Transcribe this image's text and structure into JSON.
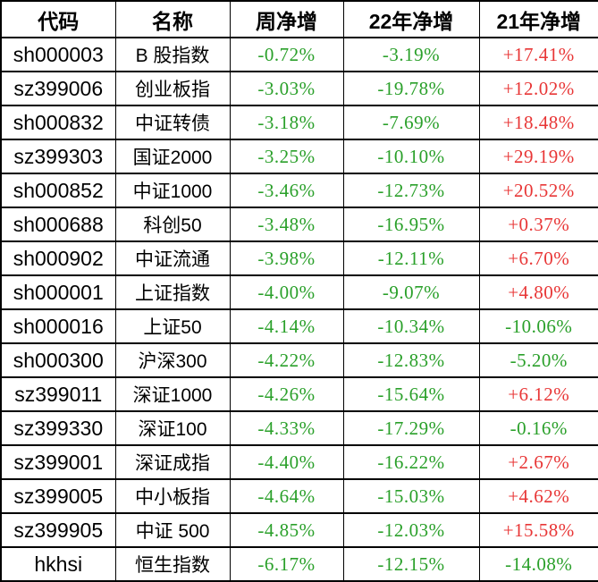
{
  "colors": {
    "negative_green": "#2aa02a",
    "positive_red": "#e83636",
    "grid_black": "#000000",
    "background": "#ffffff"
  },
  "chart_data": {
    "type": "table",
    "title": "",
    "columns": [
      "代码",
      "名称",
      "周净增",
      "22年净增",
      "21年净增"
    ],
    "rows": [
      {
        "code": "sh000003",
        "name": "B 股指数",
        "week": "-0.72%",
        "y2022": "-3.19%",
        "y2021": "+17.41%"
      },
      {
        "code": "sz399006",
        "name": "创业板指",
        "week": "-3.03%",
        "y2022": "-19.78%",
        "y2021": "+12.02%"
      },
      {
        "code": "sh000832",
        "name": "中证转债",
        "week": "-3.18%",
        "y2022": "-7.69%",
        "y2021": "+18.48%"
      },
      {
        "code": "sz399303",
        "name": "国证2000",
        "week": "-3.25%",
        "y2022": "-10.10%",
        "y2021": "+29.19%"
      },
      {
        "code": "sh000852",
        "name": "中证1000",
        "week": "-3.46%",
        "y2022": "-12.73%",
        "y2021": "+20.52%"
      },
      {
        "code": "sh000688",
        "name": "科创50",
        "week": "-3.48%",
        "y2022": "-16.95%",
        "y2021": "+0.37%"
      },
      {
        "code": "sh000902",
        "name": "中证流通",
        "week": "-3.98%",
        "y2022": "-12.11%",
        "y2021": "+6.70%"
      },
      {
        "code": "sh000001",
        "name": "上证指数",
        "week": "-4.00%",
        "y2022": "-9.07%",
        "y2021": "+4.80%"
      },
      {
        "code": "sh000016",
        "name": "上证50",
        "week": "-4.14%",
        "y2022": "-10.34%",
        "y2021": "-10.06%"
      },
      {
        "code": "sh000300",
        "name": "沪深300",
        "week": "-4.22%",
        "y2022": "-12.83%",
        "y2021": "-5.20%"
      },
      {
        "code": "sz399011",
        "name": "深证1000",
        "week": "-4.26%",
        "y2022": "-15.64%",
        "y2021": "+6.12%"
      },
      {
        "code": "sz399330",
        "name": "深证100",
        "week": "-4.33%",
        "y2022": "-17.29%",
        "y2021": "-0.16%"
      },
      {
        "code": "sz399001",
        "name": "深证成指",
        "week": "-4.40%",
        "y2022": "-16.22%",
        "y2021": "+2.67%"
      },
      {
        "code": "sz399005",
        "name": "中小板指",
        "week": "-4.64%",
        "y2022": "-15.03%",
        "y2021": "+4.62%"
      },
      {
        "code": "sz399905",
        "name": "中证 500",
        "week": "-4.85%",
        "y2022": "-12.03%",
        "y2021": "+15.58%"
      },
      {
        "code": "hkhsi",
        "name": "恒生指数",
        "week": "-6.17%",
        "y2022": "-12.15%",
        "y2021": "-14.08%"
      }
    ]
  }
}
